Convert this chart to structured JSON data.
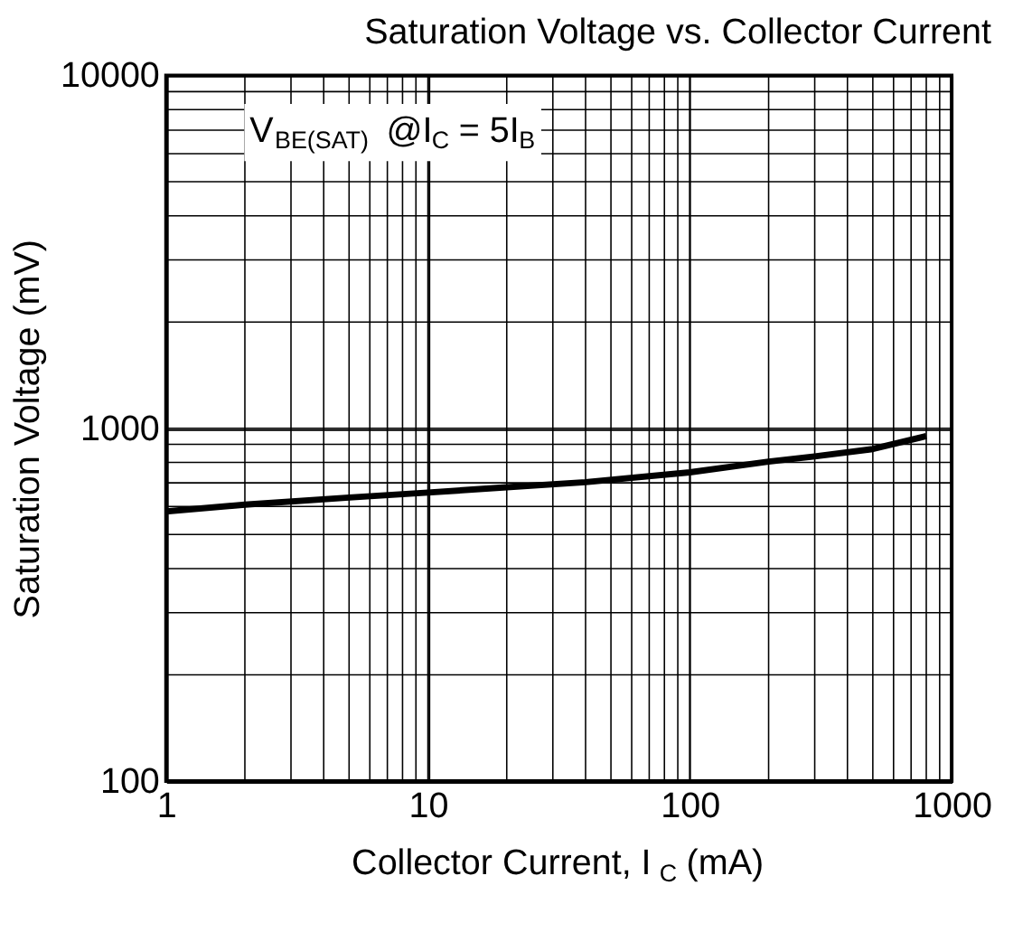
{
  "chart_data": {
    "type": "line",
    "title": "Saturation Voltage vs. Collector Current",
    "xlabel": "Collector Current, I$_{C}$ (mA)",
    "ylabel": "Saturation Voltage (mV)",
    "x": [
      1,
      2,
      5,
      10,
      20,
      40,
      100,
      200,
      300,
      500,
      800
    ],
    "series": [
      {
        "color": "#000000",
        "values": [
          581,
          607,
          636,
          657,
          680,
          703,
          750,
          804,
          832,
          873,
          950
        ]
      }
    ],
    "annotations": [
      "V$_{BE(SAT)}$ @I$_{C}$ = 5I$_{B}$"
    ],
    "log": "xy",
    "xlim": [
      1,
      1000
    ],
    "ylim": [
      100,
      10000
    ],
    "xticks": [
      1,
      10,
      100,
      1000
    ],
    "yticks": [
      100,
      1000,
      10000
    ],
    "grid": true,
    "legend": false
  }
}
